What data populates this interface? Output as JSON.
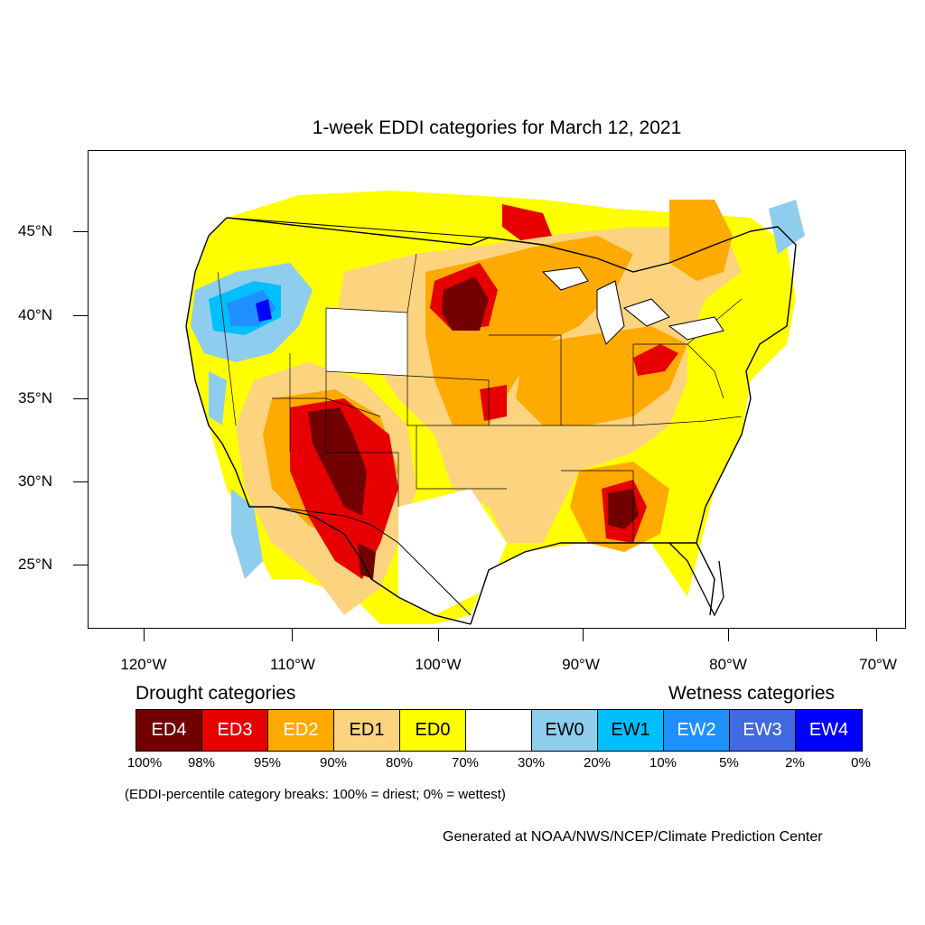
{
  "title": "1-week EDDI categories for March 12, 2021",
  "latitude_labels": [
    "45°N",
    "40°N",
    "35°N",
    "30°N",
    "25°N"
  ],
  "longitude_labels": [
    "120°W",
    "110°W",
    "100°W",
    "90°W",
    "80°W",
    "70°W"
  ],
  "legend": {
    "drought_heading": "Drought categories",
    "wetness_heading": "Wetness categories",
    "categories": [
      {
        "label": "ED4",
        "color": "#730000",
        "text_color": "#ffffff"
      },
      {
        "label": "ED3",
        "color": "#e60000",
        "text_color": "#ffffff"
      },
      {
        "label": "ED2",
        "color": "#ffaa00",
        "text_color": "#ffffff"
      },
      {
        "label": "ED1",
        "color": "#fcd37f",
        "text_color": "#000000"
      },
      {
        "label": "ED0",
        "color": "#ffff00",
        "text_color": "#000000"
      },
      {
        "label": "",
        "color": "#ffffff",
        "text_color": "#000000"
      },
      {
        "label": "EW0",
        "color": "#8fcdee",
        "text_color": "#000000"
      },
      {
        "label": "EW1",
        "color": "#00bfff",
        "text_color": "#000000"
      },
      {
        "label": "EW2",
        "color": "#1e90ff",
        "text_color": "#ffffff"
      },
      {
        "label": "EW3",
        "color": "#4169e1",
        "text_color": "#ffffff"
      },
      {
        "label": "EW4",
        "color": "#0000ff",
        "text_color": "#ffffff"
      }
    ],
    "breaks": [
      "100%",
      "98%",
      "95%",
      "90%",
      "80%",
      "70%",
      "30%",
      "20%",
      "10%",
      "5%",
      "2%",
      "0%"
    ]
  },
  "note": "(EDDI-percentile category breaks: 100% = driest; 0% = wettest)",
  "credit": "Generated at NOAA/NWS/NCEP/Climate Prediction Center"
}
